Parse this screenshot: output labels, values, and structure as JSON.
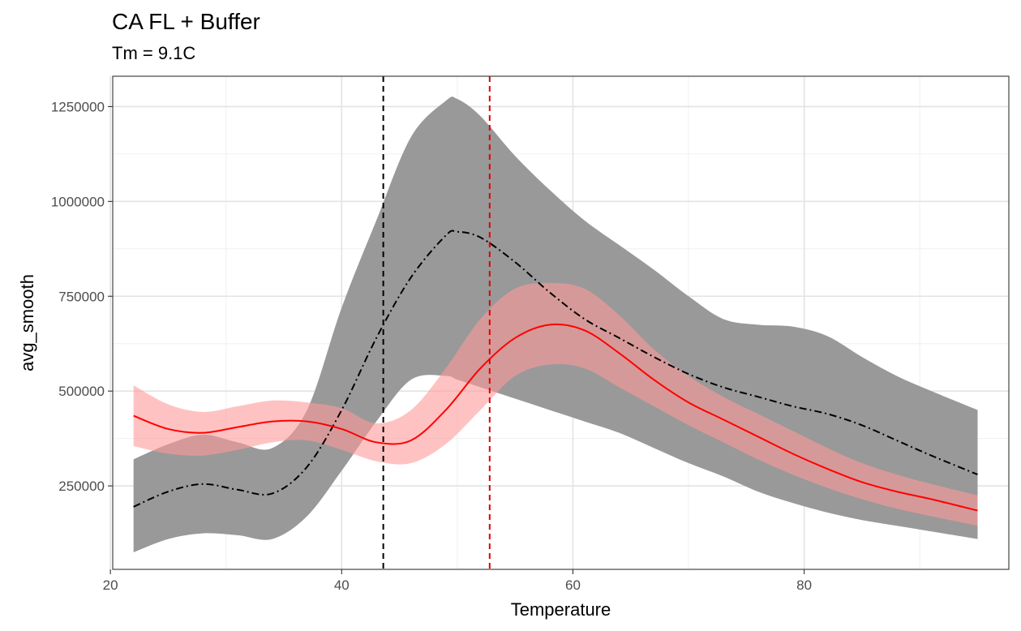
{
  "chart_data": {
    "type": "line",
    "title": "CA FL + Buffer",
    "subtitle": "Tm = 9.1C",
    "xlabel": "Temperature",
    "ylabel": "avg_smooth",
    "xlim": [
      20.2,
      97.7
    ],
    "ylim": [
      30000,
      1330000
    ],
    "x_ticks": [
      20,
      40,
      60,
      80
    ],
    "y_ticks": [
      250000,
      500000,
      750000,
      1000000,
      1250000
    ],
    "x_minor": [
      30,
      50,
      70,
      90
    ],
    "y_minor": [
      375000,
      625000,
      875000,
      1125000
    ],
    "vlines": [
      {
        "x": 43.6,
        "color": "#000000"
      },
      {
        "x": 52.8,
        "color": "#e00000"
      }
    ],
    "series": [
      {
        "color": "#000000",
        "band_color": "#999999",
        "linestyle": "dashdot",
        "x": [
          22,
          25,
          28,
          31,
          34,
          37,
          40,
          43,
          46,
          49,
          50,
          52,
          55,
          58,
          61,
          64,
          67,
          70,
          73,
          76,
          79,
          82,
          85,
          88,
          91,
          95
        ],
        "y": [
          195000,
          235000,
          255000,
          240000,
          230000,
          300000,
          450000,
          640000,
          800000,
          910000,
          920000,
          905000,
          840000,
          760000,
          690000,
          640000,
          590000,
          545000,
          510000,
          485000,
          460000,
          440000,
          410000,
          370000,
          330000,
          280000
        ],
        "lower": [
          75000,
          110000,
          125000,
          120000,
          110000,
          170000,
          290000,
          420000,
          530000,
          540000,
          530000,
          510000,
          480000,
          450000,
          420000,
          390000,
          350000,
          310000,
          275000,
          235000,
          205000,
          180000,
          160000,
          145000,
          130000,
          110000
        ],
        "upper": [
          320000,
          360000,
          385000,
          365000,
          350000,
          450000,
          720000,
          950000,
          1170000,
          1265000,
          1270000,
          1225000,
          1120000,
          1030000,
          950000,
          885000,
          820000,
          750000,
          690000,
          675000,
          670000,
          645000,
          590000,
          540000,
          500000,
          450000
        ]
      },
      {
        "color": "#ff0000",
        "band_color": "#ff9999",
        "linestyle": "solid",
        "x": [
          22,
          25,
          28,
          31,
          34,
          37,
          40,
          43,
          46,
          49,
          52,
          55,
          58,
          61,
          64,
          67,
          70,
          73,
          76,
          79,
          82,
          85,
          88,
          91,
          95
        ],
        "y": [
          435000,
          400000,
          390000,
          405000,
          420000,
          420000,
          400000,
          365000,
          370000,
          450000,
          560000,
          640000,
          675000,
          660000,
          600000,
          530000,
          470000,
          425000,
          380000,
          335000,
          295000,
          260000,
          235000,
          215000,
          185000
        ],
        "lower": [
          355000,
          335000,
          330000,
          345000,
          365000,
          370000,
          345000,
          315000,
          310000,
          360000,
          450000,
          540000,
          570000,
          560000,
          510000,
          460000,
          410000,
          365000,
          320000,
          280000,
          245000,
          215000,
          190000,
          170000,
          145000
        ],
        "upper": [
          515000,
          465000,
          445000,
          460000,
          475000,
          470000,
          455000,
          415000,
          450000,
          560000,
          690000,
          770000,
          785000,
          770000,
          700000,
          610000,
          540000,
          485000,
          440000,
          395000,
          350000,
          310000,
          280000,
          255000,
          225000
        ]
      }
    ]
  }
}
